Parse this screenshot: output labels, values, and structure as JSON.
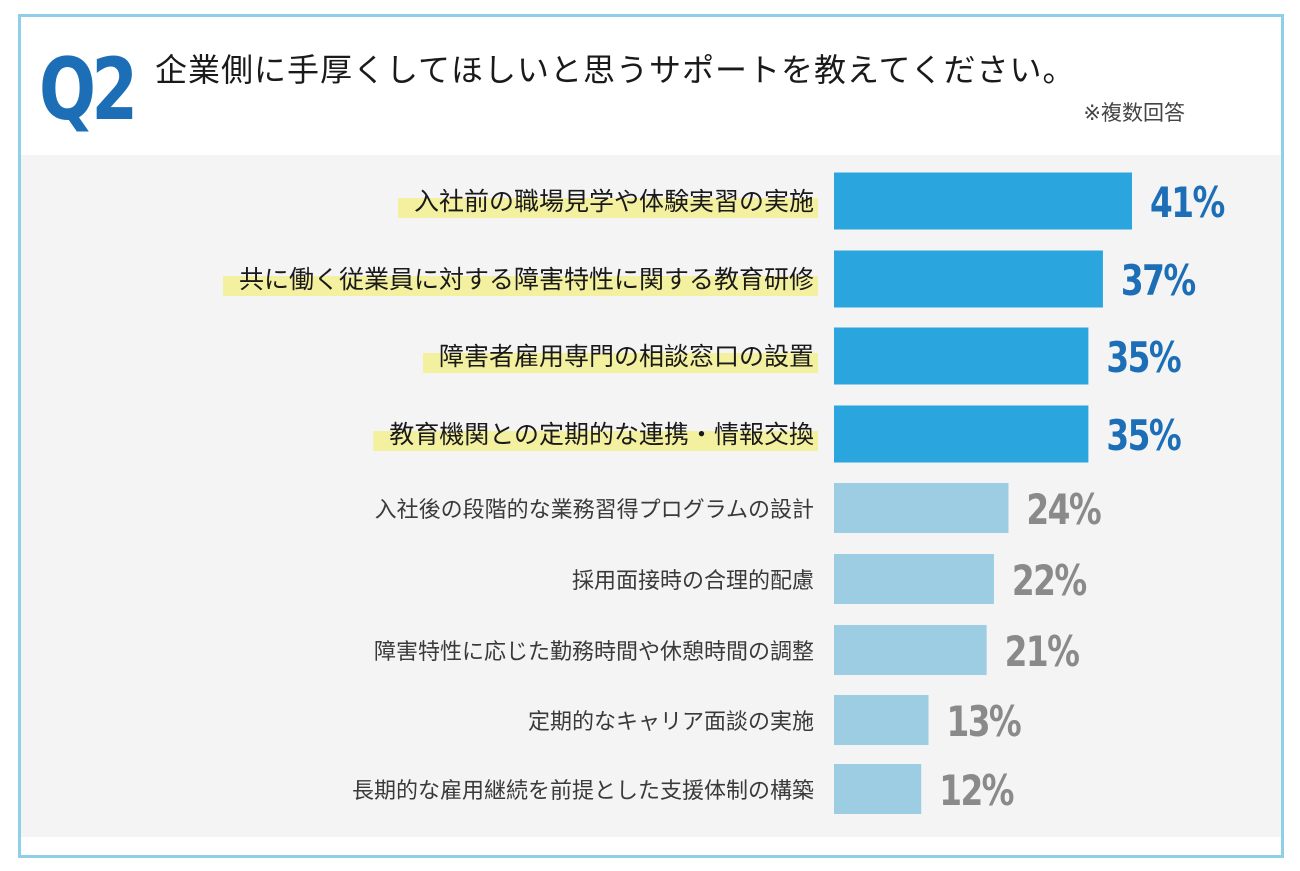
{
  "header": {
    "qnum": "Q2",
    "question": "企業側に手厚くしてほしいと思うサポートを教えてください。",
    "note": "※複数回答"
  },
  "chart_data": {
    "type": "bar",
    "orientation": "horizontal",
    "title": "企業側に手厚くしてほしいと思うサポートを教えてください。",
    "categories": [
      "入社前の職場見学や体験実習の実施",
      "共に働く従業員に対する障害特性に関する教育研修",
      "障害者雇用専門の相談窓口の設置",
      "教育機関との定期的な連携・情報交換",
      "入社後の段階的な業務習得プログラムの設計",
      "採用面接時の合理的配慮",
      "障害特性に応じた勤務時間や休憩時間の調整",
      "定期的なキャリア面談の実施",
      "長期的な雇用継続を前提とした支援体制の構築"
    ],
    "values": [
      41,
      37,
      35,
      35,
      24,
      22,
      21,
      13,
      12
    ],
    "value_labels": [
      "41%",
      "37%",
      "35%",
      "35%",
      "24%",
      "22%",
      "21%",
      "13%",
      "12%"
    ],
    "highlighted": [
      true,
      true,
      true,
      true,
      false,
      false,
      false,
      false,
      false
    ],
    "xlim": [
      0,
      41
    ],
    "colors": {
      "highlight_bar": "#2aa5de",
      "normal_bar": "#9ccde3",
      "highlight_value": "#1c6fb7",
      "normal_value": "#8a8a8a",
      "label_marker": "#f3f0a0",
      "frame": "#8fd0e8",
      "panel": "#f4f4f4"
    }
  }
}
